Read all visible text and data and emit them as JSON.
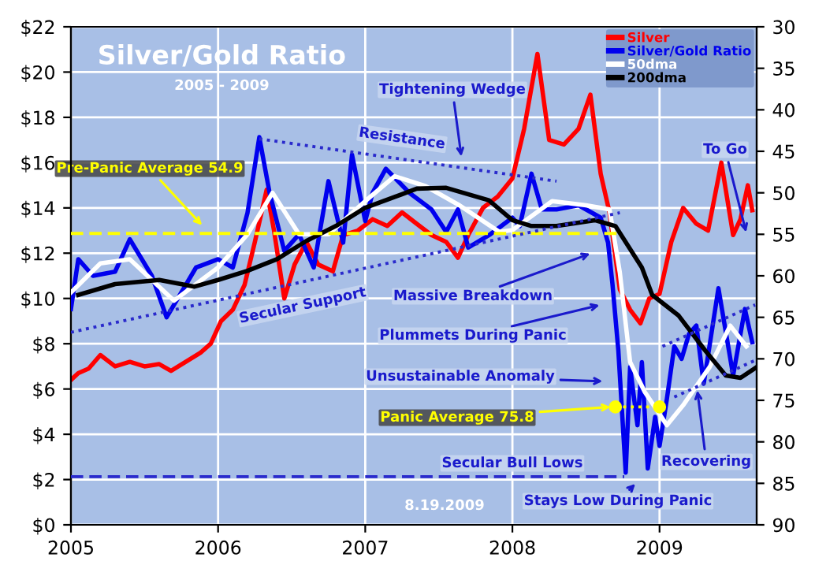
{
  "chart_data": {
    "type": "line",
    "title": "Silver/Gold Ratio",
    "subtitle": "2005 - 2009",
    "xlim": [
      2005,
      2009.66
    ],
    "xticks": [
      2005,
      2006,
      2007,
      2008,
      2009
    ],
    "ylim": [
      0,
      22
    ],
    "yticks": [
      {
        "value": 0,
        "label": "$0"
      },
      {
        "value": 2,
        "label": "$2"
      },
      {
        "value": 4,
        "label": "$4"
      },
      {
        "value": 6,
        "label": "$6"
      },
      {
        "value": 8,
        "label": "$8"
      },
      {
        "value": 10,
        "label": "$10"
      },
      {
        "value": 12,
        "label": "$12"
      },
      {
        "value": 14,
        "label": "$14"
      },
      {
        "value": 16,
        "label": "$16"
      },
      {
        "value": 18,
        "label": "$18"
      },
      {
        "value": 20,
        "label": "$20"
      },
      {
        "value": 22,
        "label": "$22"
      }
    ],
    "y2lim": [
      90,
      30
    ],
    "y2ticks": [
      30,
      35,
      40,
      45,
      50,
      55,
      60,
      65,
      70,
      75,
      80,
      85,
      90
    ],
    "grid": true,
    "legend": "top right",
    "series": [
      {
        "name": "Silver",
        "color": "#ff0000",
        "axis": "y",
        "x": [
          2005.0,
          2005.05,
          2005.12,
          2005.2,
          2005.3,
          2005.4,
          2005.5,
          2005.6,
          2005.68,
          2005.78,
          2005.88,
          2005.95,
          2006.02,
          2006.1,
          2006.18,
          2006.25,
          2006.33,
          2006.38,
          2006.45,
          2006.52,
          2006.6,
          2006.68,
          2006.78,
          2006.85,
          2006.95,
          2007.05,
          2007.15,
          2007.25,
          2007.35,
          2007.45,
          2007.55,
          2007.63,
          2007.7,
          2007.8,
          2007.9,
          2008.0,
          2008.08,
          2008.17,
          2008.25,
          2008.35,
          2008.45,
          2008.53,
          2008.6,
          2008.66,
          2008.73,
          2008.8,
          2008.87,
          2008.93,
          2009.0,
          2009.08,
          2009.16,
          2009.25,
          2009.33,
          2009.42,
          2009.5,
          2009.55,
          2009.6,
          2009.63
        ],
        "values": [
          6.4,
          6.7,
          6.9,
          7.5,
          7.0,
          7.2,
          7.0,
          7.1,
          6.8,
          7.2,
          7.6,
          8.0,
          9.0,
          9.5,
          10.6,
          12.5,
          14.8,
          13.0,
          10.0,
          11.5,
          12.5,
          11.5,
          11.2,
          12.8,
          13.0,
          13.5,
          13.2,
          13.8,
          13.3,
          12.8,
          12.5,
          11.8,
          12.8,
          14.0,
          14.5,
          15.3,
          17.5,
          20.8,
          17.0,
          16.8,
          17.5,
          19.0,
          15.5,
          13.8,
          10.4,
          9.5,
          8.9,
          10.0,
          10.2,
          12.5,
          14.0,
          13.3,
          13.0,
          16.0,
          12.8,
          13.5,
          15.0,
          13.9
        ]
      },
      {
        "name": "Silver/Gold Ratio",
        "color": "#0000ee",
        "axis": "y2",
        "x": [
          2005.0,
          2005.05,
          2005.15,
          2005.3,
          2005.4,
          2005.55,
          2005.65,
          2005.75,
          2005.85,
          2006.0,
          2006.1,
          2006.2,
          2006.28,
          2006.35,
          2006.45,
          2006.55,
          2006.65,
          2006.75,
          2006.85,
          2006.91,
          2007.0,
          2007.05,
          2007.14,
          2007.3,
          2007.45,
          2007.55,
          2007.63,
          2007.7,
          2007.85,
          2008.0,
          2008.05,
          2008.13,
          2008.2,
          2008.3,
          2008.45,
          2008.6,
          2008.65,
          2008.68,
          2008.72,
          2008.77,
          2008.8,
          2008.85,
          2008.88,
          2008.92,
          2008.97,
          2009.0,
          2009.05,
          2009.1,
          2009.15,
          2009.2,
          2009.25,
          2009.3,
          2009.4,
          2009.5,
          2009.58,
          2009.63
        ],
        "values": [
          64,
          58,
          60,
          59.5,
          55.6,
          60,
          65,
          62,
          59,
          58,
          59,
          52.4,
          43.3,
          50,
          57,
          55,
          59,
          48.6,
          56,
          45.4,
          53.4,
          50,
          47.1,
          50,
          52,
          54.7,
          52,
          56.6,
          55,
          53,
          54,
          47.7,
          52,
          52,
          51.5,
          53,
          56,
          61,
          69,
          83.7,
          71,
          78,
          70.4,
          83.2,
          77,
          80.5,
          74.8,
          68.5,
          70,
          67,
          66,
          73,
          61.5,
          72,
          64,
          68
        ]
      },
      {
        "name": "50dma",
        "color": "#ffffff",
        "axis": "y2",
        "x": [
          2005.0,
          2005.2,
          2005.4,
          2005.7,
          2006.0,
          2006.2,
          2006.37,
          2006.55,
          2006.75,
          2007.0,
          2007.2,
          2007.41,
          2007.64,
          2007.91,
          2008.0,
          2008.27,
          2008.5,
          2008.66,
          2008.73,
          2008.8,
          2008.9,
          2009.05,
          2009.16,
          2009.34,
          2009.48,
          2009.59
        ],
        "values": [
          62,
          58.5,
          58,
          63,
          59,
          55,
          50,
          55,
          55,
          51,
          48,
          49.2,
          51.5,
          54.7,
          54.5,
          51,
          51.5,
          52,
          59.6,
          70.4,
          74,
          78,
          75.6,
          71,
          66,
          68.5
        ]
      },
      {
        "name": "200dma",
        "color": "#000000",
        "axis": "y2",
        "x": [
          2005.05,
          2005.3,
          2005.6,
          2005.84,
          2006.0,
          2006.2,
          2006.4,
          2006.6,
          2006.8,
          2007.0,
          2007.2,
          2007.35,
          2007.55,
          2007.84,
          2008.0,
          2008.13,
          2008.3,
          2008.56,
          2008.7,
          2008.88,
          2008.95,
          2009.13,
          2009.31,
          2009.45,
          2009.55,
          2009.66
        ],
        "values": [
          62.3,
          61,
          60.5,
          61.3,
          60.5,
          59.4,
          58,
          55.8,
          54,
          51.8,
          50.5,
          49.5,
          49.4,
          50.9,
          53.3,
          54,
          54,
          53.3,
          54,
          59,
          62.3,
          64.8,
          69,
          72,
          72.3,
          71
        ]
      },
      {
        "color": "#ffff00",
        "axis": "y2",
        "line_style": "dashed",
        "x": [
          2005.0,
          2008.72
        ],
        "values": [
          54.9,
          54.9
        ]
      },
      {
        "color": "#ffff00",
        "axis": "y2",
        "line_style": "dotted",
        "marker": "circle",
        "x": [
          2008.7,
          2009.0
        ],
        "values": [
          75.8,
          75.8
        ]
      },
      {
        "color": "#2a2acc",
        "axis": "y2",
        "line_style": "dashed",
        "x": [
          2005.0,
          2008.76
        ],
        "values": [
          84.2,
          84.2
        ]
      },
      {
        "color": "#2a2acc",
        "axis": "y2",
        "line_style": "dotted",
        "x": [
          2006.28,
          2008.3
        ],
        "values": [
          43.5,
          48.6
        ]
      },
      {
        "color": "#2a2acc",
        "axis": "y2",
        "line_style": "dotted",
        "x": [
          2005.0,
          2008.73
        ],
        "values": [
          66.8,
          52.4
        ]
      },
      {
        "color": "#2a2acc",
        "axis": "y2",
        "line_style": "dotted",
        "x": [
          2009.02,
          2009.65
        ],
        "values": [
          68.5,
          63.5
        ]
      },
      {
        "color": "#2a2acc",
        "axis": "y2",
        "line_style": "dotted",
        "x": [
          2009.1,
          2009.66
        ],
        "values": [
          74.6,
          70.1
        ]
      }
    ],
    "annotations": [
      "Tightening Wedge",
      "Resistance",
      "Secular Support",
      "Massive Breakdown",
      "Plummets During Panic",
      "Unsustainable Anomaly",
      "Panic Average 75.8",
      "Secular Bull Lows",
      "Stays Low During Panic",
      "Recovering",
      "To Go",
      "Pre-Panic Average 54.9",
      "8.19.2009"
    ]
  }
}
